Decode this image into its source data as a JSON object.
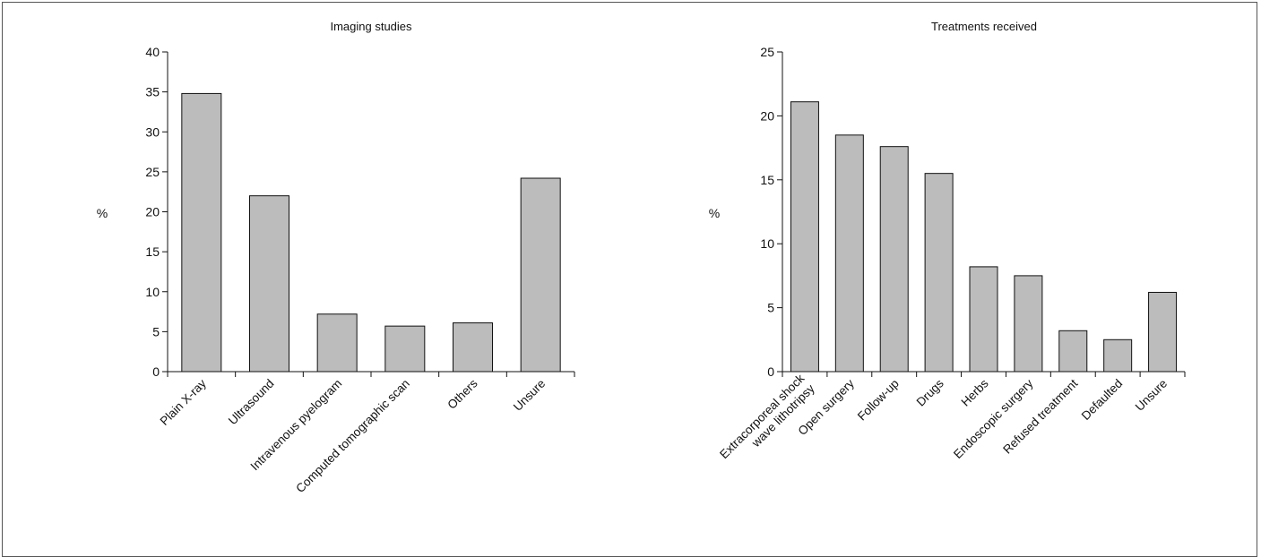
{
  "chart_data": [
    {
      "type": "bar",
      "title": "Imaging studies",
      "ylabel": "%",
      "xlabel": "",
      "ylim": [
        0,
        40
      ],
      "yticks": [
        0,
        5,
        10,
        15,
        20,
        25,
        30,
        35,
        40
      ],
      "categories": [
        [
          "Plain X-ray"
        ],
        [
          "Ultrasound"
        ],
        [
          "Intravenous pyelogram"
        ],
        [
          "Computed tomographic scan"
        ],
        [
          "Others"
        ],
        [
          "Unsure"
        ]
      ],
      "values": [
        34.8,
        22.0,
        7.2,
        5.7,
        6.1,
        24.2
      ],
      "bar_color": "#bcbcbc",
      "grid": false,
      "legend": "none"
    },
    {
      "type": "bar",
      "title": "Treatments received",
      "ylabel": "%",
      "xlabel": "",
      "ylim": [
        0,
        25
      ],
      "yticks": [
        0,
        5,
        10,
        15,
        20,
        25
      ],
      "categories": [
        [
          "Extracorporeal shock",
          "wave lithotripsy"
        ],
        [
          "Open surgery"
        ],
        [
          "Follow-up"
        ],
        [
          "Drugs"
        ],
        [
          "Herbs"
        ],
        [
          "Endoscopic surgery"
        ],
        [
          "Refused treatment"
        ],
        [
          "Defaulted"
        ],
        [
          "Unsure"
        ]
      ],
      "values": [
        21.1,
        18.5,
        17.6,
        15.5,
        8.2,
        7.5,
        3.2,
        2.5,
        6.2
      ],
      "bar_color": "#bcbcbc",
      "grid": false,
      "legend": "none"
    }
  ]
}
